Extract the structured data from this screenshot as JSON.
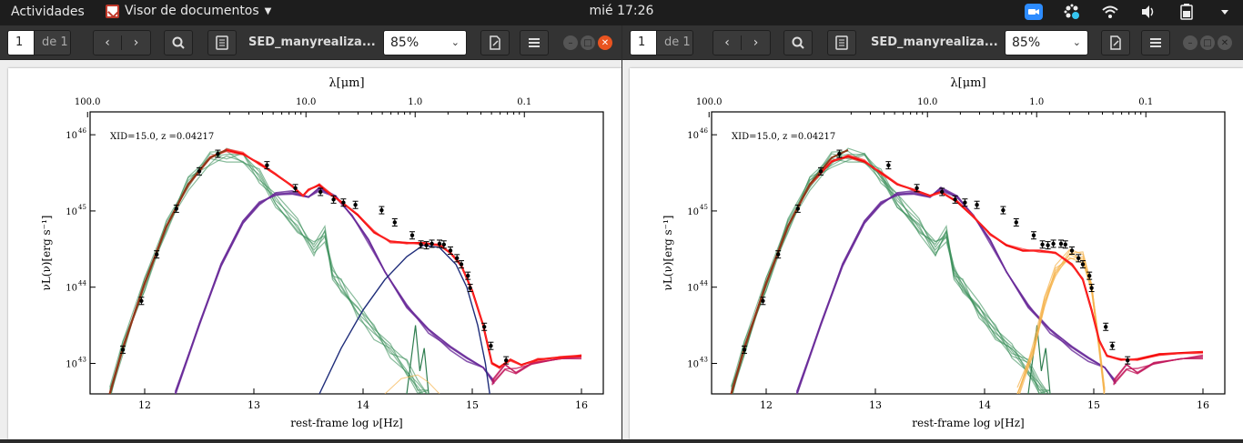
{
  "topbar": {
    "activities": "Actividades",
    "app_name": "Visor de documentos",
    "clock": "mié 17:26"
  },
  "windows": [
    {
      "page_current": "1",
      "page_total": "de 1",
      "title": "SED_manyrealiza...",
      "zoom": "85%"
    },
    {
      "page_current": "1",
      "page_total": "de 1",
      "title": "SED_manyrealiza...",
      "zoom": "85%"
    }
  ],
  "plot": {
    "annotation": "XID=15.0, z =0.04217",
    "top_axis_label": "λ[μm]",
    "bottom_axis_label": "rest-frame log ν[Hz]",
    "y_axis_label": "νL(ν)[erg s⁻¹]",
    "x_ticks": [
      "12",
      "13",
      "14",
      "15",
      "16"
    ],
    "top_ticks": [
      "100.0",
      "10.0",
      "1.0",
      "0.1"
    ],
    "y_ticks": [
      "10",
      "10",
      "10",
      "10"
    ],
    "y_exponents": [
      "46",
      "45",
      "44",
      "43"
    ],
    "xlim": [
      11.5,
      16.2
    ],
    "ylim_log": [
      42.6,
      46.3
    ],
    "observations": [
      {
        "x": 11.8,
        "y": 43.18
      },
      {
        "x": 11.97,
        "y": 43.82
      },
      {
        "x": 12.11,
        "y": 44.43
      },
      {
        "x": 12.29,
        "y": 45.03
      },
      {
        "x": 12.5,
        "y": 45.52
      },
      {
        "x": 12.67,
        "y": 45.75
      },
      {
        "x": 13.12,
        "y": 45.6
      },
      {
        "x": 13.38,
        "y": 45.3
      },
      {
        "x": 13.61,
        "y": 45.25
      },
      {
        "x": 13.73,
        "y": 45.15
      },
      {
        "x": 13.82,
        "y": 45.11
      },
      {
        "x": 13.93,
        "y": 45.08
      },
      {
        "x": 14.17,
        "y": 45.01
      },
      {
        "x": 14.29,
        "y": 44.85
      },
      {
        "x": 14.45,
        "y": 44.68
      },
      {
        "x": 14.53,
        "y": 44.56
      },
      {
        "x": 14.58,
        "y": 44.55
      },
      {
        "x": 14.63,
        "y": 44.57
      },
      {
        "x": 14.7,
        "y": 44.57
      },
      {
        "x": 14.74,
        "y": 44.56
      },
      {
        "x": 14.8,
        "y": 44.48
      },
      {
        "x": 14.86,
        "y": 44.38
      },
      {
        "x": 14.9,
        "y": 44.3
      },
      {
        "x": 14.96,
        "y": 44.15
      },
      {
        "x": 14.98,
        "y": 43.99
      },
      {
        "x": 15.11,
        "y": 43.48
      },
      {
        "x": 15.17,
        "y": 43.23
      },
      {
        "x": 15.31,
        "y": 43.04
      }
    ]
  }
}
